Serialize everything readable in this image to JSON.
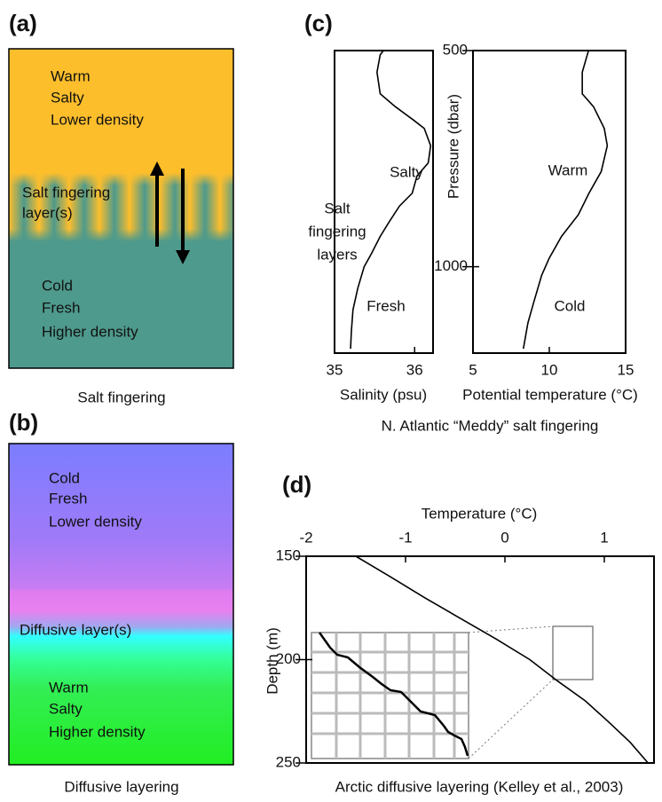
{
  "panels": {
    "a": {
      "label": "(a)",
      "top": [
        "Warm",
        "Salty",
        "Lower density"
      ],
      "middle": [
        "Salt fingering",
        "layer(s)"
      ],
      "bottom": [
        "Cold",
        "Fresh",
        "Higher density"
      ],
      "caption": "Salt fingering"
    },
    "b": {
      "label": "(b)",
      "top": [
        "Cold",
        "Fresh",
        "Lower density"
      ],
      "middle": [
        "Diffusive layer(s)"
      ],
      "bottom": [
        "Warm",
        "Salty",
        "Higher density"
      ],
      "caption": "Diffusive layering"
    },
    "c": {
      "label": "(c)",
      "caption": "N. Atlantic “Meddy” salt fingering"
    },
    "d": {
      "label": "(d)",
      "caption": "Arctic diffusive layering (Kelley et al., 2003)"
    }
  },
  "chart_data": [
    {
      "type": "line",
      "x_label": "Salinity (psu)",
      "color": "#000000",
      "x": [
        35.61,
        35.57,
        35.53,
        35.57,
        35.76,
        35.98,
        36.12,
        36.2,
        36.17,
        36.03,
        35.97,
        35.81,
        35.67,
        35.57,
        35.46,
        35.37,
        35.29,
        35.23,
        35.21,
        35.2
      ],
      "y": [
        500,
        510,
        550,
        600,
        630,
        660,
        680,
        720,
        760,
        790,
        830,
        860,
        900,
        930,
        970,
        1000,
        1050,
        1100,
        1150,
        1190
      ],
      "xlim": [
        35,
        36.23
      ],
      "xticks": [
        35,
        36
      ],
      "ylim": [
        500,
        1200
      ],
      "y_reversed": true,
      "annotations": [
        "Salty",
        "Salt",
        "fingering",
        "layers",
        "Fresh"
      ]
    },
    {
      "type": "line",
      "x_label": "Potential temperature (°C)",
      "y_label": "Pressure (dbar)",
      "color": "#000000",
      "x": [
        12.57,
        12.16,
        12.16,
        12.9,
        13.6,
        13.8,
        13.4,
        12.6,
        11.9,
        10.8,
        10.0,
        9.5,
        9.0,
        8.6,
        8.3
      ],
      "y": [
        500,
        550,
        600,
        630,
        680,
        720,
        780,
        830,
        880,
        930,
        980,
        1020,
        1080,
        1130,
        1190
      ],
      "xlim": [
        5,
        15
      ],
      "xticks": [
        5,
        10,
        15
      ],
      "ylim": [
        500,
        1200
      ],
      "yticks": [
        500,
        1000
      ],
      "y_reversed": true,
      "annotations": [
        "Warm",
        "Cold"
      ]
    },
    {
      "type": "line",
      "x_label": "Temperature (°C)",
      "y_label": "Depth (m)",
      "color": "#000000",
      "x": [
        -1.5,
        -1.15,
        -0.81,
        -0.45,
        -0.09,
        0.25,
        0.52,
        0.81,
        1.04,
        1.26,
        1.44
      ],
      "y": [
        150,
        160,
        170,
        180,
        190,
        200,
        210,
        220,
        230,
        240,
        250
      ],
      "xlim": [
        -2,
        1.5
      ],
      "xticks": [
        -2,
        -1,
        0,
        1
      ],
      "ylim": [
        150,
        250
      ],
      "yticks": [
        150,
        200,
        250
      ],
      "y_reversed": true
    }
  ]
}
